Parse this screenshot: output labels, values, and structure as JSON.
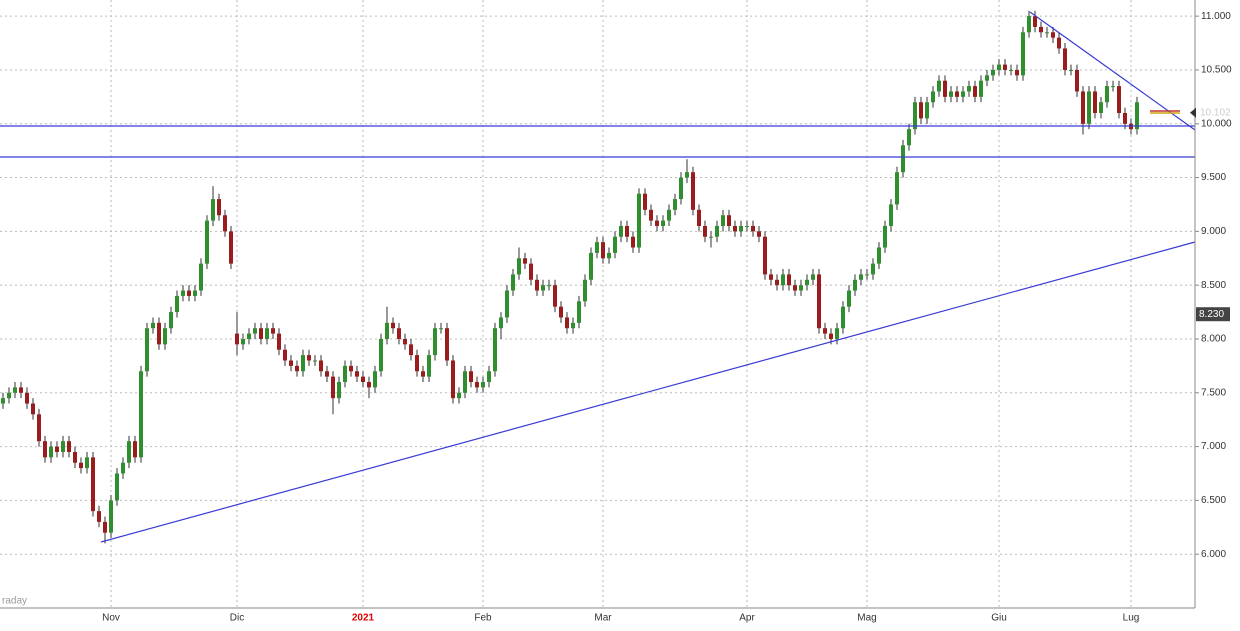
{
  "chart_data": {
    "type": "candlestick",
    "categories": [
      null,
      null,
      null,
      null,
      null,
      null,
      null,
      null,
      null,
      null,
      null,
      null,
      null,
      null,
      null,
      null,
      null,
      null,
      "Nov",
      null,
      null,
      null,
      null,
      null,
      null,
      null,
      null,
      null,
      null,
      null,
      null,
      null,
      null,
      null,
      null,
      null,
      null,
      null,
      null,
      "Dic",
      null,
      null,
      null,
      null,
      null,
      null,
      null,
      null,
      null,
      null,
      null,
      null,
      null,
      null,
      null,
      null,
      null,
      null,
      null,
      null,
      "2021",
      null,
      null,
      null,
      null,
      null,
      null,
      null,
      null,
      null,
      null,
      null,
      null,
      null,
      null,
      null,
      null,
      null,
      null,
      null,
      "Feb",
      null,
      null,
      null,
      null,
      null,
      null,
      null,
      null,
      null,
      null,
      null,
      null,
      null,
      null,
      null,
      null,
      null,
      null,
      null,
      "Mar",
      null,
      null,
      null,
      null,
      null,
      null,
      null,
      null,
      null,
      null,
      null,
      null,
      null,
      null,
      null,
      null,
      null,
      null,
      null,
      null,
      null,
      null,
      null,
      "Apr",
      null,
      null,
      null,
      null,
      null,
      null,
      null,
      null,
      null,
      null,
      null,
      null,
      null,
      null,
      null,
      null,
      null,
      null,
      null,
      "Mag",
      null,
      null,
      null,
      null,
      null,
      null,
      null,
      null,
      null,
      null,
      null,
      null,
      null,
      null,
      null,
      null,
      null,
      null,
      null,
      null,
      null,
      "Giu",
      null,
      null,
      null,
      null,
      null,
      null,
      null,
      null,
      null,
      null,
      null,
      null,
      null,
      null,
      null,
      null,
      null,
      null,
      null,
      null,
      null,
      "Lug",
      null
    ],
    "open": [
      7.4,
      7.45,
      7.5,
      7.55,
      7.5,
      7.4,
      7.3,
      7.05,
      6.9,
      7.0,
      6.95,
      7.05,
      6.95,
      6.85,
      6.8,
      6.9,
      6.4,
      6.3,
      6.2,
      6.5,
      6.75,
      6.85,
      7.05,
      6.9,
      7.7,
      8.1,
      8.15,
      7.95,
      8.1,
      8.25,
      8.4,
      8.45,
      8.4,
      8.45,
      8.7,
      9.1,
      9.3,
      9.15,
      9.0,
      8.05,
      7.95,
      8.0,
      8.05,
      8.1,
      8.0,
      8.1,
      8.05,
      7.9,
      7.8,
      7.75,
      7.7,
      7.85,
      7.8,
      7.8,
      7.7,
      7.65,
      7.45,
      7.6,
      7.75,
      7.7,
      7.65,
      7.6,
      7.55,
      7.7,
      8.0,
      8.15,
      8.1,
      8.0,
      7.95,
      7.85,
      7.7,
      7.65,
      7.85,
      8.1,
      8.1,
      7.8,
      7.45,
      7.5,
      7.7,
      7.6,
      7.55,
      7.6,
      7.7,
      8.1,
      8.2,
      8.45,
      8.6,
      8.75,
      8.7,
      8.55,
      8.45,
      8.5,
      8.5,
      8.3,
      8.2,
      8.1,
      8.15,
      8.35,
      8.55,
      8.8,
      8.9,
      8.75,
      8.8,
      8.95,
      9.05,
      8.95,
      8.85,
      9.35,
      9.2,
      9.1,
      9.05,
      9.1,
      9.2,
      9.3,
      9.5,
      9.55,
      9.2,
      9.05,
      8.95,
      8.95,
      9.05,
      9.15,
      9.05,
      9.0,
      9.05,
      9.05,
      9.0,
      8.95,
      8.6,
      8.55,
      8.5,
      8.6,
      8.5,
      8.45,
      8.5,
      8.55,
      8.6,
      8.1,
      8.05,
      8.0,
      8.1,
      8.3,
      8.45,
      8.55,
      8.6,
      8.6,
      8.7,
      8.85,
      9.05,
      9.25,
      9.55,
      9.8,
      9.95,
      10.2,
      10.05,
      10.2,
      10.3,
      10.4,
      10.25,
      10.3,
      10.25,
      10.3,
      10.35,
      10.25,
      10.4,
      10.45,
      10.5,
      10.55,
      10.5,
      10.5,
      10.45,
      10.85,
      11.0,
      10.9,
      10.85,
      10.85,
      10.8,
      10.7,
      10.5,
      10.5,
      10.3,
      10.0,
      10.3,
      10.1,
      10.2,
      10.35,
      10.35,
      10.1,
      10.0,
      9.95
    ],
    "high": [
      7.5,
      7.55,
      7.6,
      7.6,
      7.55,
      7.45,
      7.35,
      7.1,
      7.05,
      7.05,
      7.1,
      7.1,
      7.0,
      6.9,
      6.95,
      6.95,
      6.45,
      6.35,
      6.55,
      6.8,
      6.9,
      7.1,
      7.1,
      7.75,
      8.15,
      8.2,
      8.2,
      8.15,
      8.3,
      8.45,
      8.5,
      8.5,
      8.5,
      8.75,
      9.15,
      9.42,
      9.35,
      9.2,
      9.05,
      8.25,
      8.05,
      8.1,
      8.15,
      8.15,
      8.15,
      8.15,
      8.1,
      7.95,
      7.85,
      7.8,
      7.9,
      7.9,
      7.85,
      7.85,
      7.75,
      7.7,
      7.65,
      7.8,
      7.8,
      7.75,
      7.7,
      7.65,
      7.75,
      8.05,
      8.3,
      8.2,
      8.15,
      8.05,
      8.0,
      7.9,
      7.75,
      7.9,
      8.15,
      8.15,
      8.15,
      7.85,
      7.55,
      7.75,
      7.75,
      7.65,
      7.65,
      7.75,
      8.15,
      8.25,
      8.5,
      8.65,
      8.85,
      8.8,
      8.75,
      8.6,
      8.55,
      8.55,
      8.55,
      8.35,
      8.25,
      8.2,
      8.4,
      8.6,
      8.85,
      8.95,
      8.95,
      8.85,
      9.0,
      9.1,
      9.1,
      9.0,
      9.4,
      9.4,
      9.25,
      9.15,
      9.15,
      9.25,
      9.35,
      9.55,
      9.67,
      9.6,
      9.25,
      9.1,
      9.0,
      9.1,
      9.2,
      9.2,
      9.1,
      9.1,
      9.1,
      9.1,
      9.05,
      9.0,
      8.65,
      8.6,
      8.65,
      8.65,
      8.55,
      8.55,
      8.6,
      8.65,
      8.65,
      8.15,
      8.1,
      8.15,
      8.35,
      8.5,
      8.6,
      8.65,
      8.65,
      8.75,
      8.9,
      9.1,
      9.3,
      9.6,
      9.85,
      10.0,
      10.25,
      10.25,
      10.25,
      10.35,
      10.45,
      10.45,
      10.35,
      10.35,
      10.35,
      10.4,
      10.4,
      10.45,
      10.5,
      10.55,
      10.6,
      10.6,
      10.55,
      10.55,
      10.9,
      11.05,
      11.05,
      10.95,
      10.9,
      10.9,
      10.85,
      10.75,
      10.55,
      10.55,
      10.35,
      10.35,
      10.35,
      10.25,
      10.4,
      10.4,
      10.4,
      10.15,
      10.05,
      10.25
    ],
    "low": [
      7.35,
      7.4,
      7.45,
      7.45,
      7.35,
      7.25,
      7.0,
      6.85,
      6.85,
      6.9,
      6.9,
      6.9,
      6.8,
      6.75,
      6.75,
      6.35,
      6.25,
      6.1,
      6.15,
      6.45,
      6.7,
      6.8,
      6.85,
      6.85,
      7.65,
      8.05,
      7.9,
      7.9,
      8.05,
      8.2,
      8.35,
      8.35,
      8.35,
      8.4,
      8.65,
      9.05,
      9.1,
      8.95,
      8.65,
      7.85,
      7.9,
      7.95,
      8.0,
      7.95,
      7.95,
      8.0,
      7.85,
      7.75,
      7.7,
      7.65,
      7.65,
      7.75,
      7.75,
      7.65,
      7.6,
      7.3,
      7.4,
      7.55,
      7.65,
      7.6,
      7.55,
      7.45,
      7.5,
      7.65,
      7.95,
      8.05,
      7.95,
      7.9,
      7.8,
      7.65,
      7.6,
      7.6,
      7.8,
      8.05,
      7.75,
      7.4,
      7.4,
      7.45,
      7.55,
      7.5,
      7.5,
      7.55,
      7.65,
      8.0,
      8.15,
      8.4,
      8.55,
      8.65,
      8.5,
      8.4,
      8.4,
      8.45,
      8.25,
      8.15,
      8.05,
      8.05,
      8.1,
      8.3,
      8.5,
      8.75,
      8.7,
      8.7,
      8.75,
      8.9,
      8.9,
      8.8,
      8.8,
      9.15,
      9.05,
      9.0,
      9.0,
      9.05,
      9.15,
      9.25,
      9.45,
      9.15,
      9.0,
      8.9,
      8.85,
      8.9,
      9.0,
      9.0,
      8.95,
      8.95,
      9.0,
      8.95,
      8.9,
      8.55,
      8.5,
      8.45,
      8.45,
      8.45,
      8.4,
      8.4,
      8.45,
      8.5,
      8.05,
      8.0,
      7.95,
      7.95,
      8.05,
      8.25,
      8.4,
      8.5,
      8.55,
      8.55,
      8.65,
      8.8,
      9.0,
      9.2,
      9.5,
      9.75,
      9.9,
      10.0,
      10.0,
      10.15,
      10.25,
      10.2,
      10.2,
      10.2,
      10.2,
      10.25,
      10.2,
      10.2,
      10.35,
      10.4,
      10.45,
      10.45,
      10.45,
      10.4,
      10.4,
      10.8,
      10.85,
      10.8,
      10.8,
      10.75,
      10.65,
      10.45,
      10.45,
      10.25,
      9.9,
      9.95,
      10.05,
      10.05,
      10.15,
      10.3,
      10.05,
      9.95,
      9.9,
      9.9
    ],
    "close": [
      7.45,
      7.5,
      7.55,
      7.5,
      7.4,
      7.3,
      7.05,
      6.9,
      7.0,
      6.95,
      7.05,
      6.95,
      6.85,
      6.8,
      6.9,
      6.4,
      6.3,
      6.2,
      6.5,
      6.75,
      6.85,
      7.05,
      6.9,
      7.7,
      8.1,
      8.15,
      7.95,
      8.1,
      8.25,
      8.4,
      8.45,
      8.4,
      8.45,
      8.7,
      9.1,
      9.3,
      9.15,
      9.0,
      8.7,
      7.95,
      8.0,
      8.05,
      8.1,
      8.0,
      8.1,
      8.05,
      7.9,
      7.8,
      7.75,
      7.7,
      7.85,
      7.8,
      7.8,
      7.7,
      7.65,
      7.45,
      7.6,
      7.75,
      7.7,
      7.65,
      7.6,
      7.55,
      7.7,
      8.0,
      8.15,
      8.1,
      8.0,
      7.95,
      7.85,
      7.7,
      7.65,
      7.85,
      8.1,
      8.1,
      7.8,
      7.45,
      7.5,
      7.7,
      7.6,
      7.55,
      7.6,
      7.7,
      8.1,
      8.2,
      8.45,
      8.6,
      8.75,
      8.7,
      8.55,
      8.45,
      8.5,
      8.5,
      8.3,
      8.2,
      8.1,
      8.15,
      8.35,
      8.55,
      8.8,
      8.9,
      8.75,
      8.8,
      8.95,
      9.05,
      8.95,
      8.85,
      9.35,
      9.2,
      9.1,
      9.05,
      9.1,
      9.2,
      9.3,
      9.5,
      9.55,
      9.2,
      9.05,
      8.95,
      8.95,
      9.05,
      9.15,
      9.05,
      9.0,
      9.05,
      9.05,
      9.0,
      8.95,
      8.6,
      8.55,
      8.5,
      8.6,
      8.5,
      8.45,
      8.5,
      8.55,
      8.6,
      8.1,
      8.05,
      8.0,
      8.1,
      8.3,
      8.45,
      8.55,
      8.6,
      8.6,
      8.7,
      8.85,
      9.05,
      9.25,
      9.55,
      9.8,
      9.95,
      10.2,
      10.05,
      10.2,
      10.3,
      10.4,
      10.25,
      10.3,
      10.25,
      10.3,
      10.35,
      10.25,
      10.4,
      10.45,
      10.5,
      10.55,
      10.5,
      10.5,
      10.45,
      10.85,
      11.0,
      10.9,
      10.85,
      10.85,
      10.8,
      10.7,
      10.5,
      10.5,
      10.3,
      10.0,
      10.3,
      10.1,
      10.2,
      10.35,
      10.35,
      10.1,
      10.0,
      9.95,
      10.2
    ],
    "up_color": "#2f8f2f",
    "down_color": "#9b1c1c",
    "ylim": [
      5.5,
      11.15
    ],
    "yticks": [
      {
        "value": 6,
        "label": "6.000"
      },
      {
        "value": 6.5,
        "label": "6.500"
      },
      {
        "value": 7,
        "label": "7.000"
      },
      {
        "value": 7.5,
        "label": "7.500"
      },
      {
        "value": 8,
        "label": "8.000"
      },
      {
        "value": 8.5,
        "label": "8.500"
      },
      {
        "value": 9,
        "label": "9.000"
      },
      {
        "value": 9.5,
        "label": "9.500"
      },
      {
        "value": 10,
        "label": "10.000"
      },
      {
        "value": 10.5,
        "label": "10.500"
      },
      {
        "value": 11,
        "label": "11.000"
      }
    ],
    "grid": true,
    "last_price": {
      "value": 8.23,
      "label": "8.230"
    },
    "marker_price": {
      "value": 10.102,
      "label": "10.102"
    },
    "footer": "raday"
  }
}
